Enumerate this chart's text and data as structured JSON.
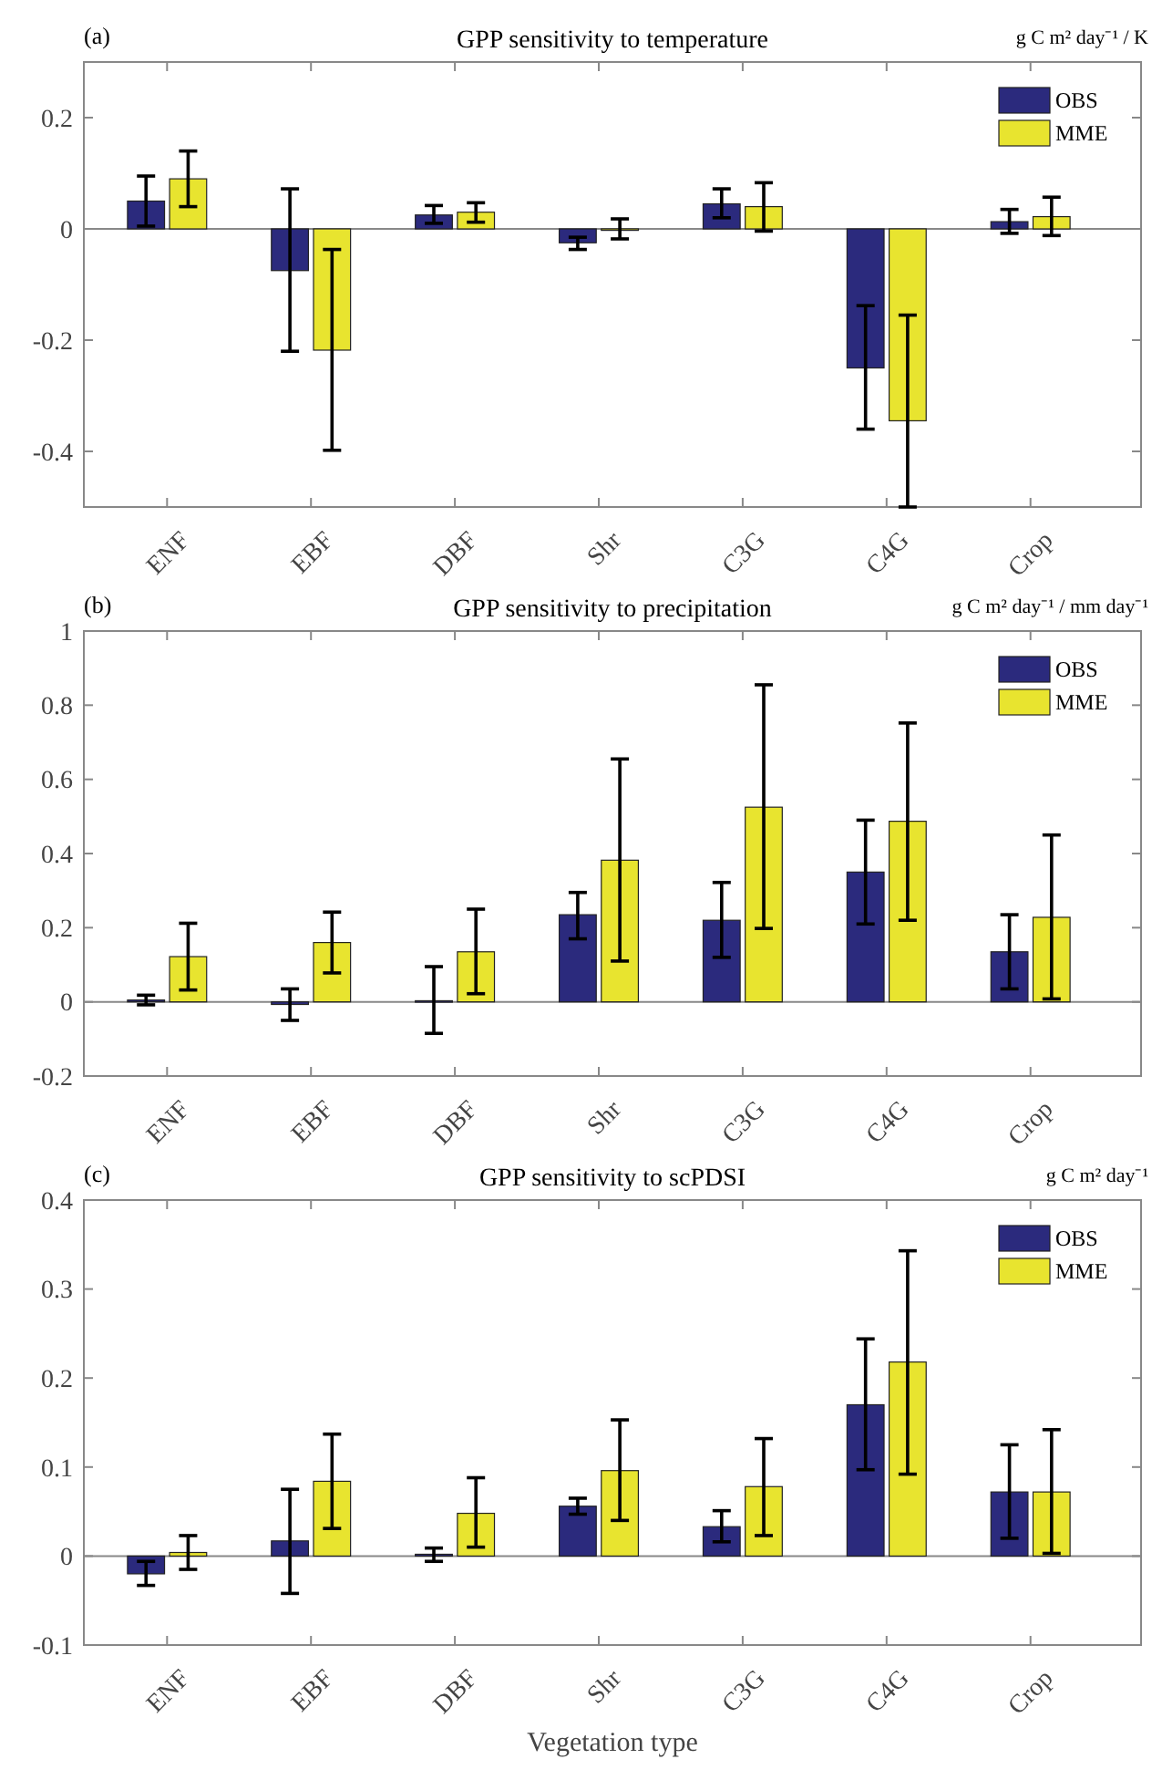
{
  "chart_data": [
    {
      "type": "bar",
      "title": "GPP sensitivity to temperature",
      "annotations": [
        "(a)",
        "g C m² day⁻¹ / K"
      ],
      "categories": [
        "ENF",
        "EBF",
        "DBF",
        "Shr",
        "C3G",
        "C4G",
        "Crop"
      ],
      "series": [
        {
          "name": "OBS",
          "color": "#2b2a7d",
          "values": [
            0.05,
            -0.075,
            0.025,
            -0.025,
            0.045,
            -0.25,
            0.013
          ],
          "errors": [
            [
              0.005,
              0.095
            ],
            [
              -0.22,
              0.072
            ],
            [
              0.01,
              0.042
            ],
            [
              -0.037,
              -0.015
            ],
            [
              0.02,
              0.072
            ],
            [
              -0.36,
              -0.138
            ],
            [
              -0.008,
              0.035
            ]
          ]
        },
        {
          "name": "MME",
          "color": "#e8e42f",
          "values": [
            0.09,
            -0.218,
            0.03,
            0,
            0.04,
            -0.345,
            0.022
          ],
          "errors": [
            [
              0.04,
              0.14
            ],
            [
              -0.398,
              -0.037
            ],
            [
              0.012,
              0.047
            ],
            [
              -0.018,
              0.018
            ],
            [
              -0.004,
              0.083
            ],
            [
              -0.5,
              -0.155
            ],
            [
              -0.012,
              0.057
            ]
          ]
        }
      ],
      "ylim": [
        -0.5,
        0.3
      ],
      "yticks": [
        -0.4,
        -0.2,
        0,
        0.2
      ],
      "legend": "top right"
    },
    {
      "type": "bar",
      "title": "GPP sensitivity to precipitation",
      "annotations": [
        "(b)",
        "g C m² day⁻¹ / mm day⁻¹"
      ],
      "categories": [
        "ENF",
        "EBF",
        "DBF",
        "Shr",
        "C3G",
        "C4G",
        "Crop"
      ],
      "series": [
        {
          "name": "OBS",
          "color": "#2b2a7d",
          "values": [
            0.005,
            -0.007,
            0.003,
            0.235,
            0.22,
            0.35,
            0.135
          ],
          "errors": [
            [
              -0.008,
              0.018
            ],
            [
              -0.05,
              0.035
            ],
            [
              -0.085,
              0.095
            ],
            [
              0.17,
              0.295
            ],
            [
              0.12,
              0.322
            ],
            [
              0.21,
              0.49
            ],
            [
              0.035,
              0.235
            ]
          ]
        },
        {
          "name": "MME",
          "color": "#e8e42f",
          "values": [
            0.122,
            0.16,
            0.135,
            0.382,
            0.525,
            0.487,
            0.228
          ],
          "errors": [
            [
              0.032,
              0.212
            ],
            [
              0.078,
              0.242
            ],
            [
              0.022,
              0.25
            ],
            [
              0.11,
              0.655
            ],
            [
              0.198,
              0.855
            ],
            [
              0.22,
              0.752
            ],
            [
              0.008,
              0.45
            ]
          ]
        }
      ],
      "ylim": [
        -0.2,
        1
      ],
      "yticks": [
        -0.2,
        0,
        0.2,
        0.4,
        0.6,
        0.8,
        1
      ],
      "legend": "top right"
    },
    {
      "type": "bar",
      "title": "GPP sensitivity to scPDSI",
      "xlabel": "Vegetation type",
      "annotations": [
        "(c)",
        "g C m² day⁻¹"
      ],
      "categories": [
        "ENF",
        "EBF",
        "DBF",
        "Shr",
        "C3G",
        "C4G",
        "Crop"
      ],
      "series": [
        {
          "name": "OBS",
          "color": "#2b2a7d",
          "values": [
            -0.02,
            0.017,
            0.002,
            0.056,
            0.033,
            0.17,
            0.072
          ],
          "errors": [
            [
              -0.033,
              -0.006
            ],
            [
              -0.042,
              0.075
            ],
            [
              -0.006,
              0.009
            ],
            [
              0.047,
              0.065
            ],
            [
              0.016,
              0.051
            ],
            [
              0.097,
              0.244
            ],
            [
              0.02,
              0.125
            ]
          ]
        },
        {
          "name": "MME",
          "color": "#e8e42f",
          "values": [
            0.004,
            0.084,
            0.048,
            0.096,
            0.078,
            0.218,
            0.072
          ],
          "errors": [
            [
              -0.015,
              0.023
            ],
            [
              0.031,
              0.137
            ],
            [
              0.01,
              0.088
            ],
            [
              0.04,
              0.153
            ],
            [
              0.023,
              0.132
            ],
            [
              0.092,
              0.343
            ],
            [
              0.003,
              0.142
            ]
          ]
        }
      ],
      "ylim": [
        -0.1,
        0.4
      ],
      "yticks": [
        -0.1,
        0,
        0.1,
        0.2,
        0.3,
        0.4
      ],
      "legend": "top right"
    }
  ]
}
